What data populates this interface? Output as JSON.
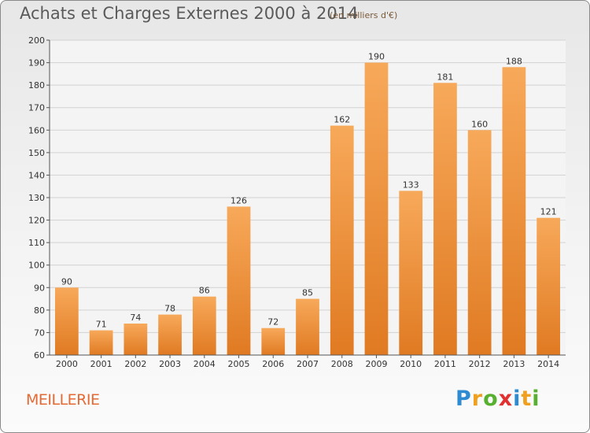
{
  "header": {
    "title": "Achats et Charges Externes 2000 à 2014",
    "unit_note": "(en milliers d'€)"
  },
  "footer": {
    "commune": "MEILLERIE",
    "brand_letters": [
      "P",
      "r",
      "o",
      "x",
      "i",
      "t",
      "i"
    ],
    "brand_colors": [
      "#2e8bd1",
      "#f0a020",
      "#58b030",
      "#e03030",
      "#2e8bd1",
      "#f0a020",
      "#58b030"
    ]
  },
  "chart_data": {
    "type": "bar",
    "categories": [
      "2000",
      "2001",
      "2002",
      "2003",
      "2004",
      "2005",
      "2006",
      "2007",
      "2008",
      "2009",
      "2010",
      "2011",
      "2012",
      "2013",
      "2014"
    ],
    "values": [
      90,
      71,
      74,
      78,
      86,
      126,
      72,
      85,
      162,
      190,
      133,
      181,
      160,
      188,
      121
    ],
    "title": "Achats et Charges Externes 2000 à 2014",
    "ylim": [
      60,
      200
    ],
    "ytick_step": 10,
    "grid": true,
    "bar_color_top": "#f7a95a",
    "bar_color_bottom": "#e07a22"
  }
}
